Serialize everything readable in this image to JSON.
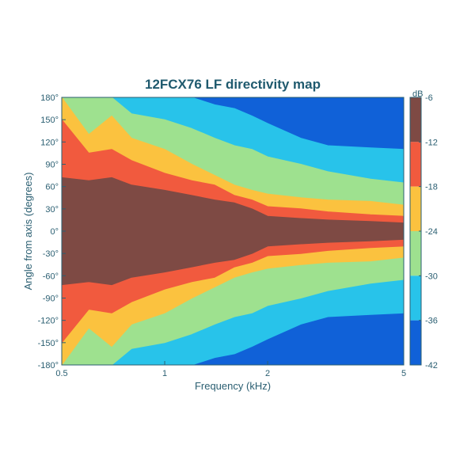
{
  "chart_data": {
    "type": "heatmap",
    "title": "12FCX76 LF directivity map",
    "xlabel": "Frequency (kHz)",
    "ylabel": "Angle from axis (degrees)",
    "x_scale": "log",
    "xlim": [
      0.5,
      5
    ],
    "ylim": [
      -180,
      180
    ],
    "x_ticks": [
      {
        "value": 0.5,
        "label": "0.5"
      },
      {
        "value": 1,
        "label": "1"
      },
      {
        "value": 2,
        "label": "2"
      },
      {
        "value": 5,
        "label": "5"
      }
    ],
    "y_ticks": [
      {
        "value": 180,
        "label": "180°"
      },
      {
        "value": 150,
        "label": "150°"
      },
      {
        "value": 120,
        "label": "120°"
      },
      {
        "value": 90,
        "label": "90°"
      },
      {
        "value": 60,
        "label": "60°"
      },
      {
        "value": 30,
        "label": "30°"
      },
      {
        "value": 0,
        "label": "0°"
      },
      {
        "value": -30,
        "label": "-30°"
      },
      {
        "value": -60,
        "label": "-60°"
      },
      {
        "value": -90,
        "label": "-90°"
      },
      {
        "value": -120,
        "label": "-120°"
      },
      {
        "value": -150,
        "label": "-150°"
      },
      {
        "value": -180,
        "label": "-180°"
      }
    ],
    "colorbar": {
      "unit": "dB",
      "range": [
        -42,
        -6
      ],
      "ticks": [
        {
          "value": -6,
          "label": "-6"
        },
        {
          "value": -12,
          "label": "-12"
        },
        {
          "value": -18,
          "label": "-18"
        },
        {
          "value": -24,
          "label": "-24"
        },
        {
          "value": -30,
          "label": "-30"
        },
        {
          "value": -36,
          "label": "-36"
        },
        {
          "value": -42,
          "label": "-42"
        }
      ],
      "levels": [
        {
          "from": -6,
          "to": -12,
          "color": "#7e4a44"
        },
        {
          "from": -12,
          "to": -18,
          "color": "#f15a3e"
        },
        {
          "from": -18,
          "to": -24,
          "color": "#fbc23f"
        },
        {
          "from": -24,
          "to": -30,
          "color": "#9ee18f"
        },
        {
          "from": -30,
          "to": -36,
          "color": "#28c3ea"
        },
        {
          "from": -36,
          "to": -42,
          "color": "#1061d8"
        }
      ]
    },
    "contour_boundaries": {
      "description_of_fields": "angle (degrees) where level changes, at each frequency in kHz",
      "frequencies": [
        0.5,
        0.6,
        0.7,
        0.8,
        1.0,
        1.2,
        1.4,
        1.6,
        1.8,
        2.0,
        2.5,
        3.0,
        4.0,
        5.0
      ],
      "minus_12": [
        72,
        68,
        72,
        62,
        55,
        48,
        42,
        38,
        30,
        20,
        17,
        15,
        13,
        11
      ],
      "minus_18": [
        150,
        105,
        110,
        95,
        78,
        68,
        62,
        48,
        42,
        33,
        30,
        26,
        22,
        20
      ],
      "minus_24": [
        180,
        130,
        155,
        125,
        110,
        90,
        75,
        62,
        55,
        50,
        45,
        42,
        40,
        35
      ],
      "minus_30": [
        180,
        180,
        180,
        158,
        150,
        138,
        125,
        115,
        110,
        100,
        90,
        80,
        70,
        65
      ],
      "minus_36": [
        180,
        180,
        180,
        180,
        180,
        180,
        170,
        165,
        155,
        145,
        125,
        115,
        112,
        110
      ]
    }
  }
}
